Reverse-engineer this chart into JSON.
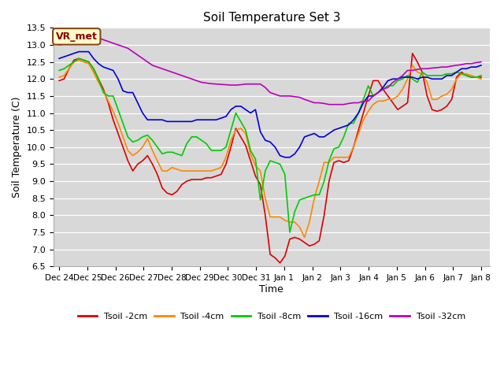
{
  "title": "Soil Temperature Set 3",
  "xlabel": "Time",
  "ylabel": "Soil Temperature (C)",
  "ylim": [
    6.5,
    13.5
  ],
  "yticks": [
    6.5,
    7.0,
    7.5,
    8.0,
    8.5,
    9.0,
    9.5,
    10.0,
    10.5,
    11.0,
    11.5,
    12.0,
    12.5,
    13.0,
    13.5
  ],
  "fig_bg_color": "#ffffff",
  "plot_bg_color": "#d8d8d8",
  "grid_color": "#ffffff",
  "legend_label": "VR_met",
  "series_colors": {
    "Tsoil -2cm": "#dd0000",
    "Tsoil -4cm": "#ff8800",
    "Tsoil -8cm": "#00cc00",
    "Tsoil -16cm": "#0000dd",
    "Tsoil -32cm": "#bb00bb"
  },
  "x_labels": [
    "Dec 24",
    "Dec 25",
    "Dec 26",
    "Dec 27",
    "Dec 28",
    "Dec 29",
    "Dec 30",
    "Dec 31",
    "Jan 1",
    "Jan 2",
    "Jan 3",
    "Jan 4",
    "Jan 5",
    "Jan 6",
    "Jan 7",
    "Jan 8"
  ],
  "tsoil_2cm": [
    11.95,
    12.0,
    12.3,
    12.55,
    12.6,
    12.55,
    12.5,
    12.3,
    12.0,
    11.7,
    11.3,
    10.8,
    10.4,
    10.0,
    9.6,
    9.3,
    9.5,
    9.6,
    9.75,
    9.5,
    9.2,
    8.8,
    8.65,
    8.6,
    8.7,
    8.9,
    9.0,
    9.05,
    9.05,
    9.05,
    9.1,
    9.1,
    9.15,
    9.2,
    9.5,
    10.0,
    10.55,
    10.3,
    10.05,
    9.6,
    9.15,
    8.9,
    8.0,
    6.85,
    6.75,
    6.6,
    6.8,
    7.3,
    7.35,
    7.3,
    7.2,
    7.1,
    7.15,
    7.25,
    8.0,
    9.0,
    9.55,
    9.6,
    9.55,
    9.6,
    10.0,
    10.5,
    11.0,
    11.5,
    11.95,
    11.95,
    11.7,
    11.5,
    11.3,
    11.1,
    11.2,
    11.3,
    12.75,
    12.5,
    12.2,
    11.5,
    11.1,
    11.05,
    11.1,
    11.2,
    11.4,
    12.05,
    12.2,
    12.1,
    12.05,
    12.05,
    12.05
  ],
  "tsoil_4cm": [
    12.05,
    12.1,
    12.3,
    12.5,
    12.55,
    12.5,
    12.45,
    12.2,
    11.9,
    11.65,
    11.35,
    11.05,
    10.7,
    10.3,
    9.9,
    9.75,
    9.85,
    10.0,
    10.25,
    9.9,
    9.6,
    9.3,
    9.3,
    9.4,
    9.35,
    9.3,
    9.3,
    9.3,
    9.3,
    9.3,
    9.3,
    9.3,
    9.35,
    9.4,
    9.7,
    10.2,
    10.5,
    10.55,
    10.4,
    9.8,
    9.45,
    9.3,
    8.5,
    7.95,
    7.95,
    7.95,
    7.85,
    7.8,
    7.8,
    7.65,
    7.35,
    7.8,
    8.5,
    9.0,
    9.55,
    9.55,
    9.7,
    9.7,
    9.7,
    9.7,
    10.0,
    10.4,
    10.8,
    11.05,
    11.25,
    11.35,
    11.35,
    11.4,
    11.4,
    11.5,
    11.7,
    12.0,
    12.4,
    12.2,
    12.15,
    11.9,
    11.4,
    11.4,
    11.5,
    11.55,
    11.7,
    12.0,
    12.15,
    12.15,
    12.1,
    12.05,
    12.0
  ],
  "tsoil_8cm": [
    12.25,
    12.3,
    12.4,
    12.5,
    12.6,
    12.55,
    12.5,
    12.3,
    12.0,
    11.6,
    11.5,
    11.5,
    11.1,
    10.7,
    10.3,
    10.15,
    10.2,
    10.3,
    10.35,
    10.2,
    10.0,
    9.8,
    9.85,
    9.85,
    9.8,
    9.75,
    10.1,
    10.3,
    10.3,
    10.2,
    10.1,
    9.9,
    9.9,
    9.9,
    10.0,
    10.5,
    11.0,
    10.75,
    10.5,
    9.9,
    9.65,
    8.45,
    9.3,
    9.6,
    9.55,
    9.5,
    9.2,
    7.5,
    8.1,
    8.45,
    8.5,
    8.55,
    8.6,
    8.6,
    9.0,
    9.6,
    9.95,
    10.0,
    10.3,
    10.7,
    10.7,
    11.0,
    11.4,
    11.8,
    11.5,
    11.6,
    11.7,
    11.8,
    11.8,
    11.95,
    12.0,
    12.1,
    12.0,
    11.9,
    12.2,
    12.1,
    12.1,
    12.1,
    12.1,
    12.15,
    12.15,
    12.2,
    12.15,
    12.1,
    12.05,
    12.05,
    12.1
  ],
  "tsoil_16cm": [
    12.6,
    12.65,
    12.7,
    12.75,
    12.8,
    12.8,
    12.8,
    12.6,
    12.45,
    12.35,
    12.3,
    12.25,
    12.0,
    11.65,
    11.6,
    11.6,
    11.3,
    11.0,
    10.8,
    10.8,
    10.8,
    10.8,
    10.75,
    10.75,
    10.75,
    10.75,
    10.75,
    10.75,
    10.8,
    10.8,
    10.8,
    10.8,
    10.8,
    10.85,
    10.9,
    11.1,
    11.2,
    11.2,
    11.1,
    11.0,
    11.1,
    10.45,
    10.2,
    10.15,
    10.0,
    9.75,
    9.7,
    9.7,
    9.8,
    10.0,
    10.3,
    10.35,
    10.4,
    10.3,
    10.3,
    10.4,
    10.5,
    10.55,
    10.6,
    10.65,
    10.8,
    11.0,
    11.3,
    11.5,
    11.5,
    11.6,
    11.75,
    11.95,
    12.0,
    12.0,
    12.05,
    12.05,
    12.05,
    12.0,
    12.05,
    12.05,
    12.0,
    12.0,
    12.0,
    12.1,
    12.1,
    12.2,
    12.3,
    12.3,
    12.35,
    12.35,
    12.4
  ],
  "tsoil_32cm": [
    13.0,
    13.02,
    13.05,
    13.08,
    13.1,
    13.12,
    13.15,
    13.18,
    13.2,
    13.15,
    13.1,
    13.05,
    13.0,
    12.95,
    12.9,
    12.8,
    12.7,
    12.6,
    12.5,
    12.4,
    12.35,
    12.3,
    12.25,
    12.2,
    12.15,
    12.1,
    12.05,
    12.0,
    11.95,
    11.9,
    11.88,
    11.86,
    11.85,
    11.84,
    11.83,
    11.82,
    11.82,
    11.83,
    11.85,
    11.85,
    11.85,
    11.85,
    11.75,
    11.6,
    11.55,
    11.5,
    11.5,
    11.5,
    11.48,
    11.46,
    11.4,
    11.35,
    11.3,
    11.3,
    11.28,
    11.25,
    11.25,
    11.25,
    11.25,
    11.28,
    11.3,
    11.3,
    11.35,
    11.35,
    11.5,
    11.6,
    11.7,
    11.75,
    11.9,
    12.0,
    12.1,
    12.25,
    12.25,
    12.28,
    12.3,
    12.3,
    12.32,
    12.33,
    12.35,
    12.35,
    12.38,
    12.4,
    12.42,
    12.45,
    12.45,
    12.48,
    12.5
  ]
}
